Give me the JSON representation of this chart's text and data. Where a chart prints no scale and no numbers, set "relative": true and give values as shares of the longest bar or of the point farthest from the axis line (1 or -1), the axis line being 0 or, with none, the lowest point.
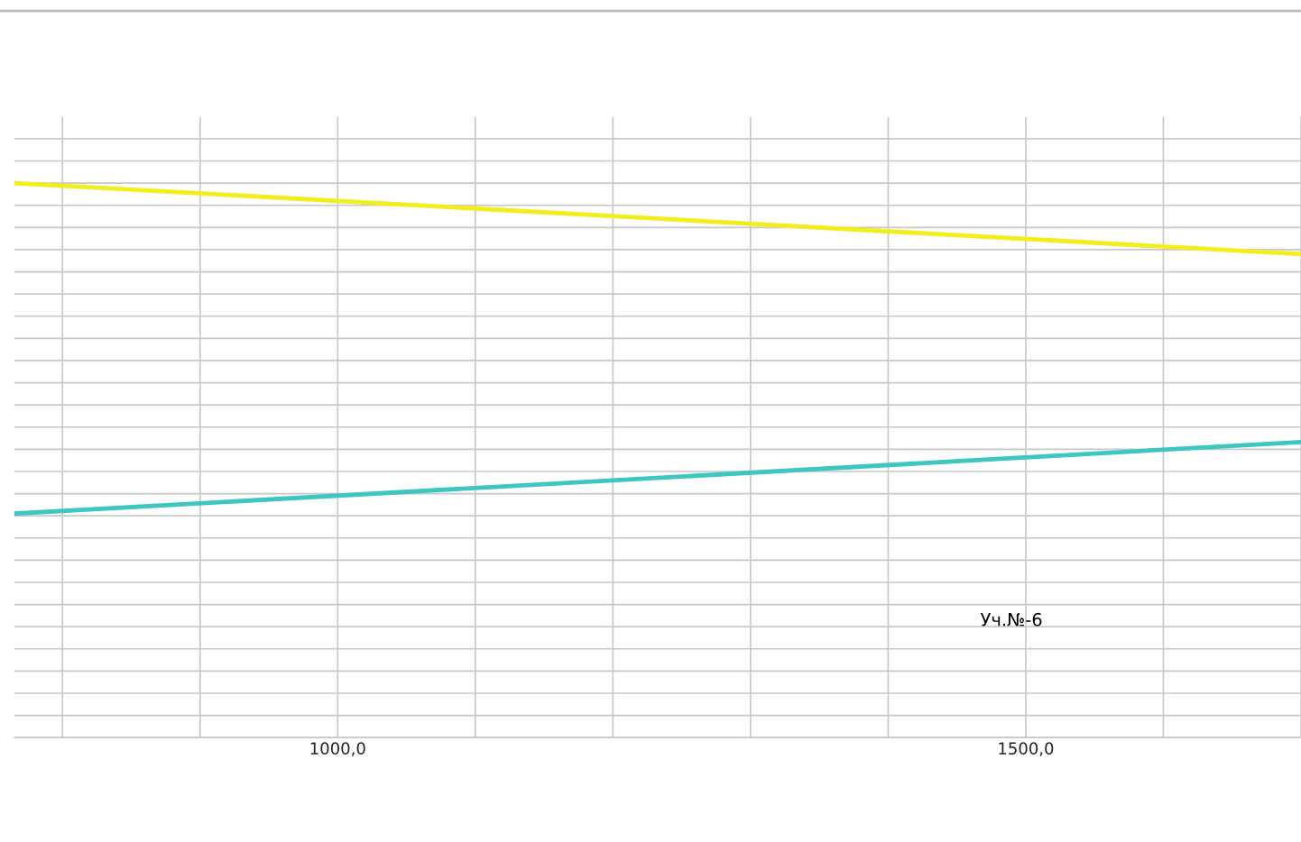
{
  "chart_data": {
    "type": "line",
    "relative": true,
    "x": [
      765,
      1700
    ],
    "series": [
      {
        "color": "#f2ee1e",
        "values": [
          1,
          0.872
        ]
      },
      {
        "color": "#3ec6c2",
        "values": [
          0.404,
          0.533
        ]
      }
    ],
    "xlim": [
      765,
      1700
    ],
    "xticks": [
      {
        "value": 800,
        "label": null
      },
      {
        "value": 900,
        "label": null
      },
      {
        "value": 1000,
        "label": "1000,0"
      },
      {
        "value": 1100,
        "label": null
      },
      {
        "value": 1200,
        "label": null
      },
      {
        "value": 1300,
        "label": null
      },
      {
        "value": 1400,
        "label": null
      },
      {
        "value": 1500,
        "label": "1500,0"
      },
      {
        "value": 1600,
        "label": null
      },
      {
        "value": 1700,
        "label": null
      }
    ],
    "tick_labels": "x",
    "grid": true,
    "marker": "none",
    "line_style": "solid",
    "annotations": [
      "Уч.№-6"
    ]
  }
}
